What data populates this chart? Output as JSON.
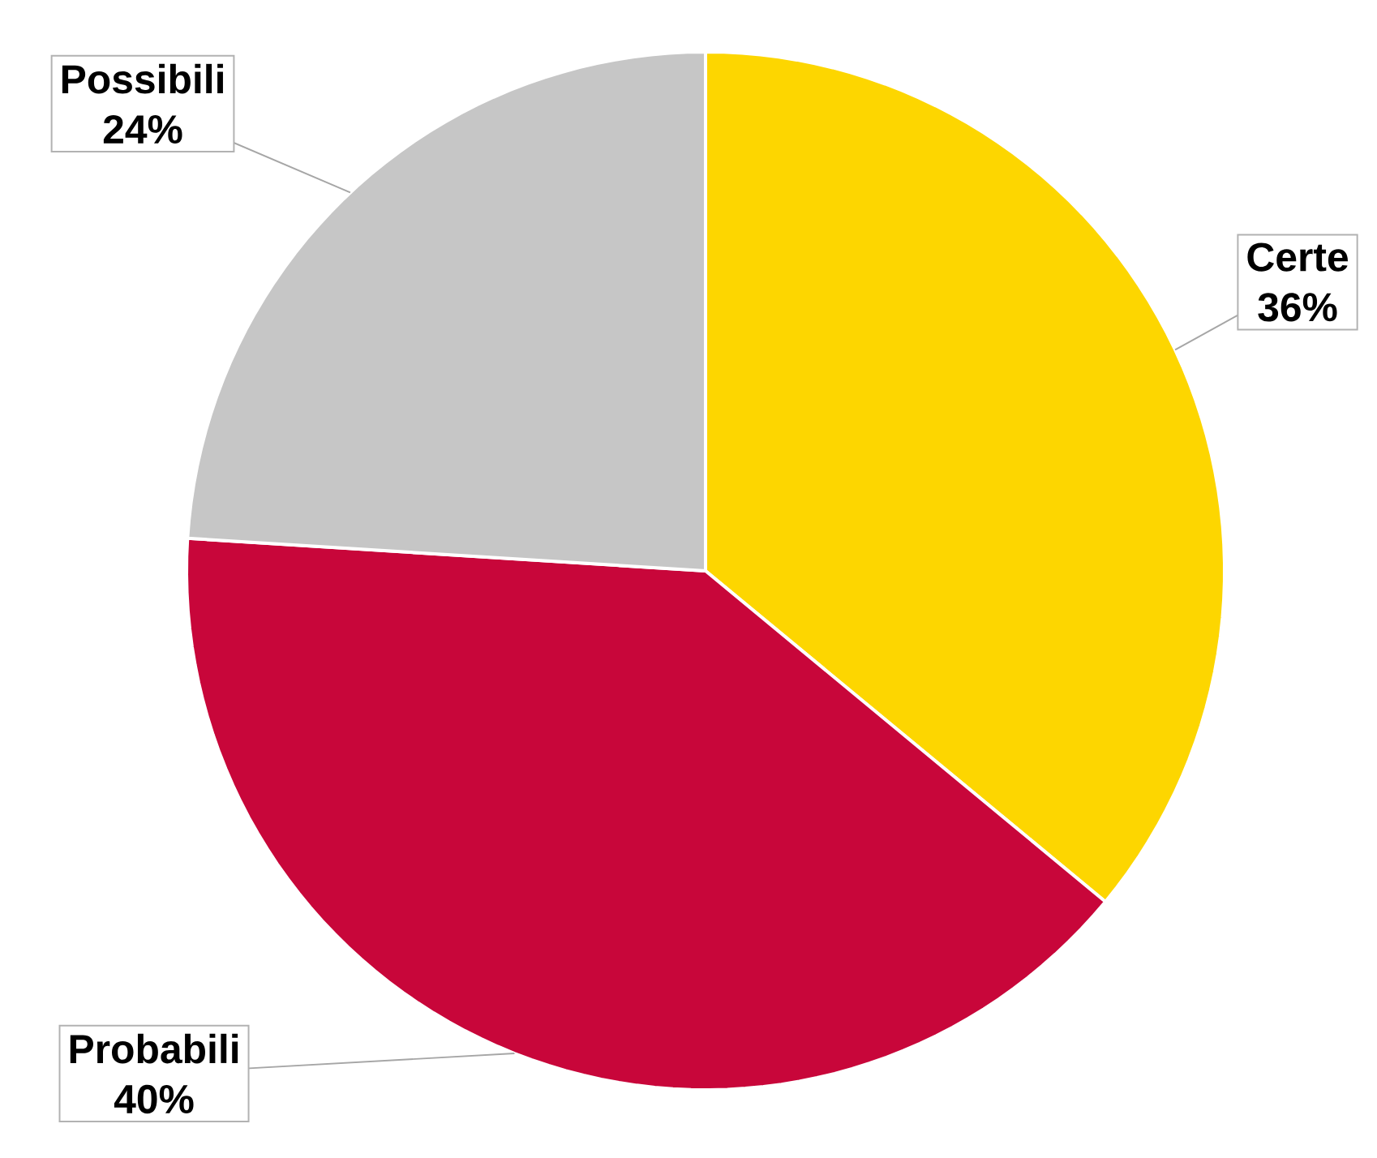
{
  "chart_data": {
    "type": "pie",
    "categories": [
      "Certe",
      "Probabili",
      "Possibili"
    ],
    "values": [
      36,
      40,
      24
    ],
    "value_labels": [
      "36%",
      "40%",
      "24%"
    ],
    "colors": [
      "#fdd600",
      "#c8063a",
      "#c6c6c6"
    ]
  }
}
